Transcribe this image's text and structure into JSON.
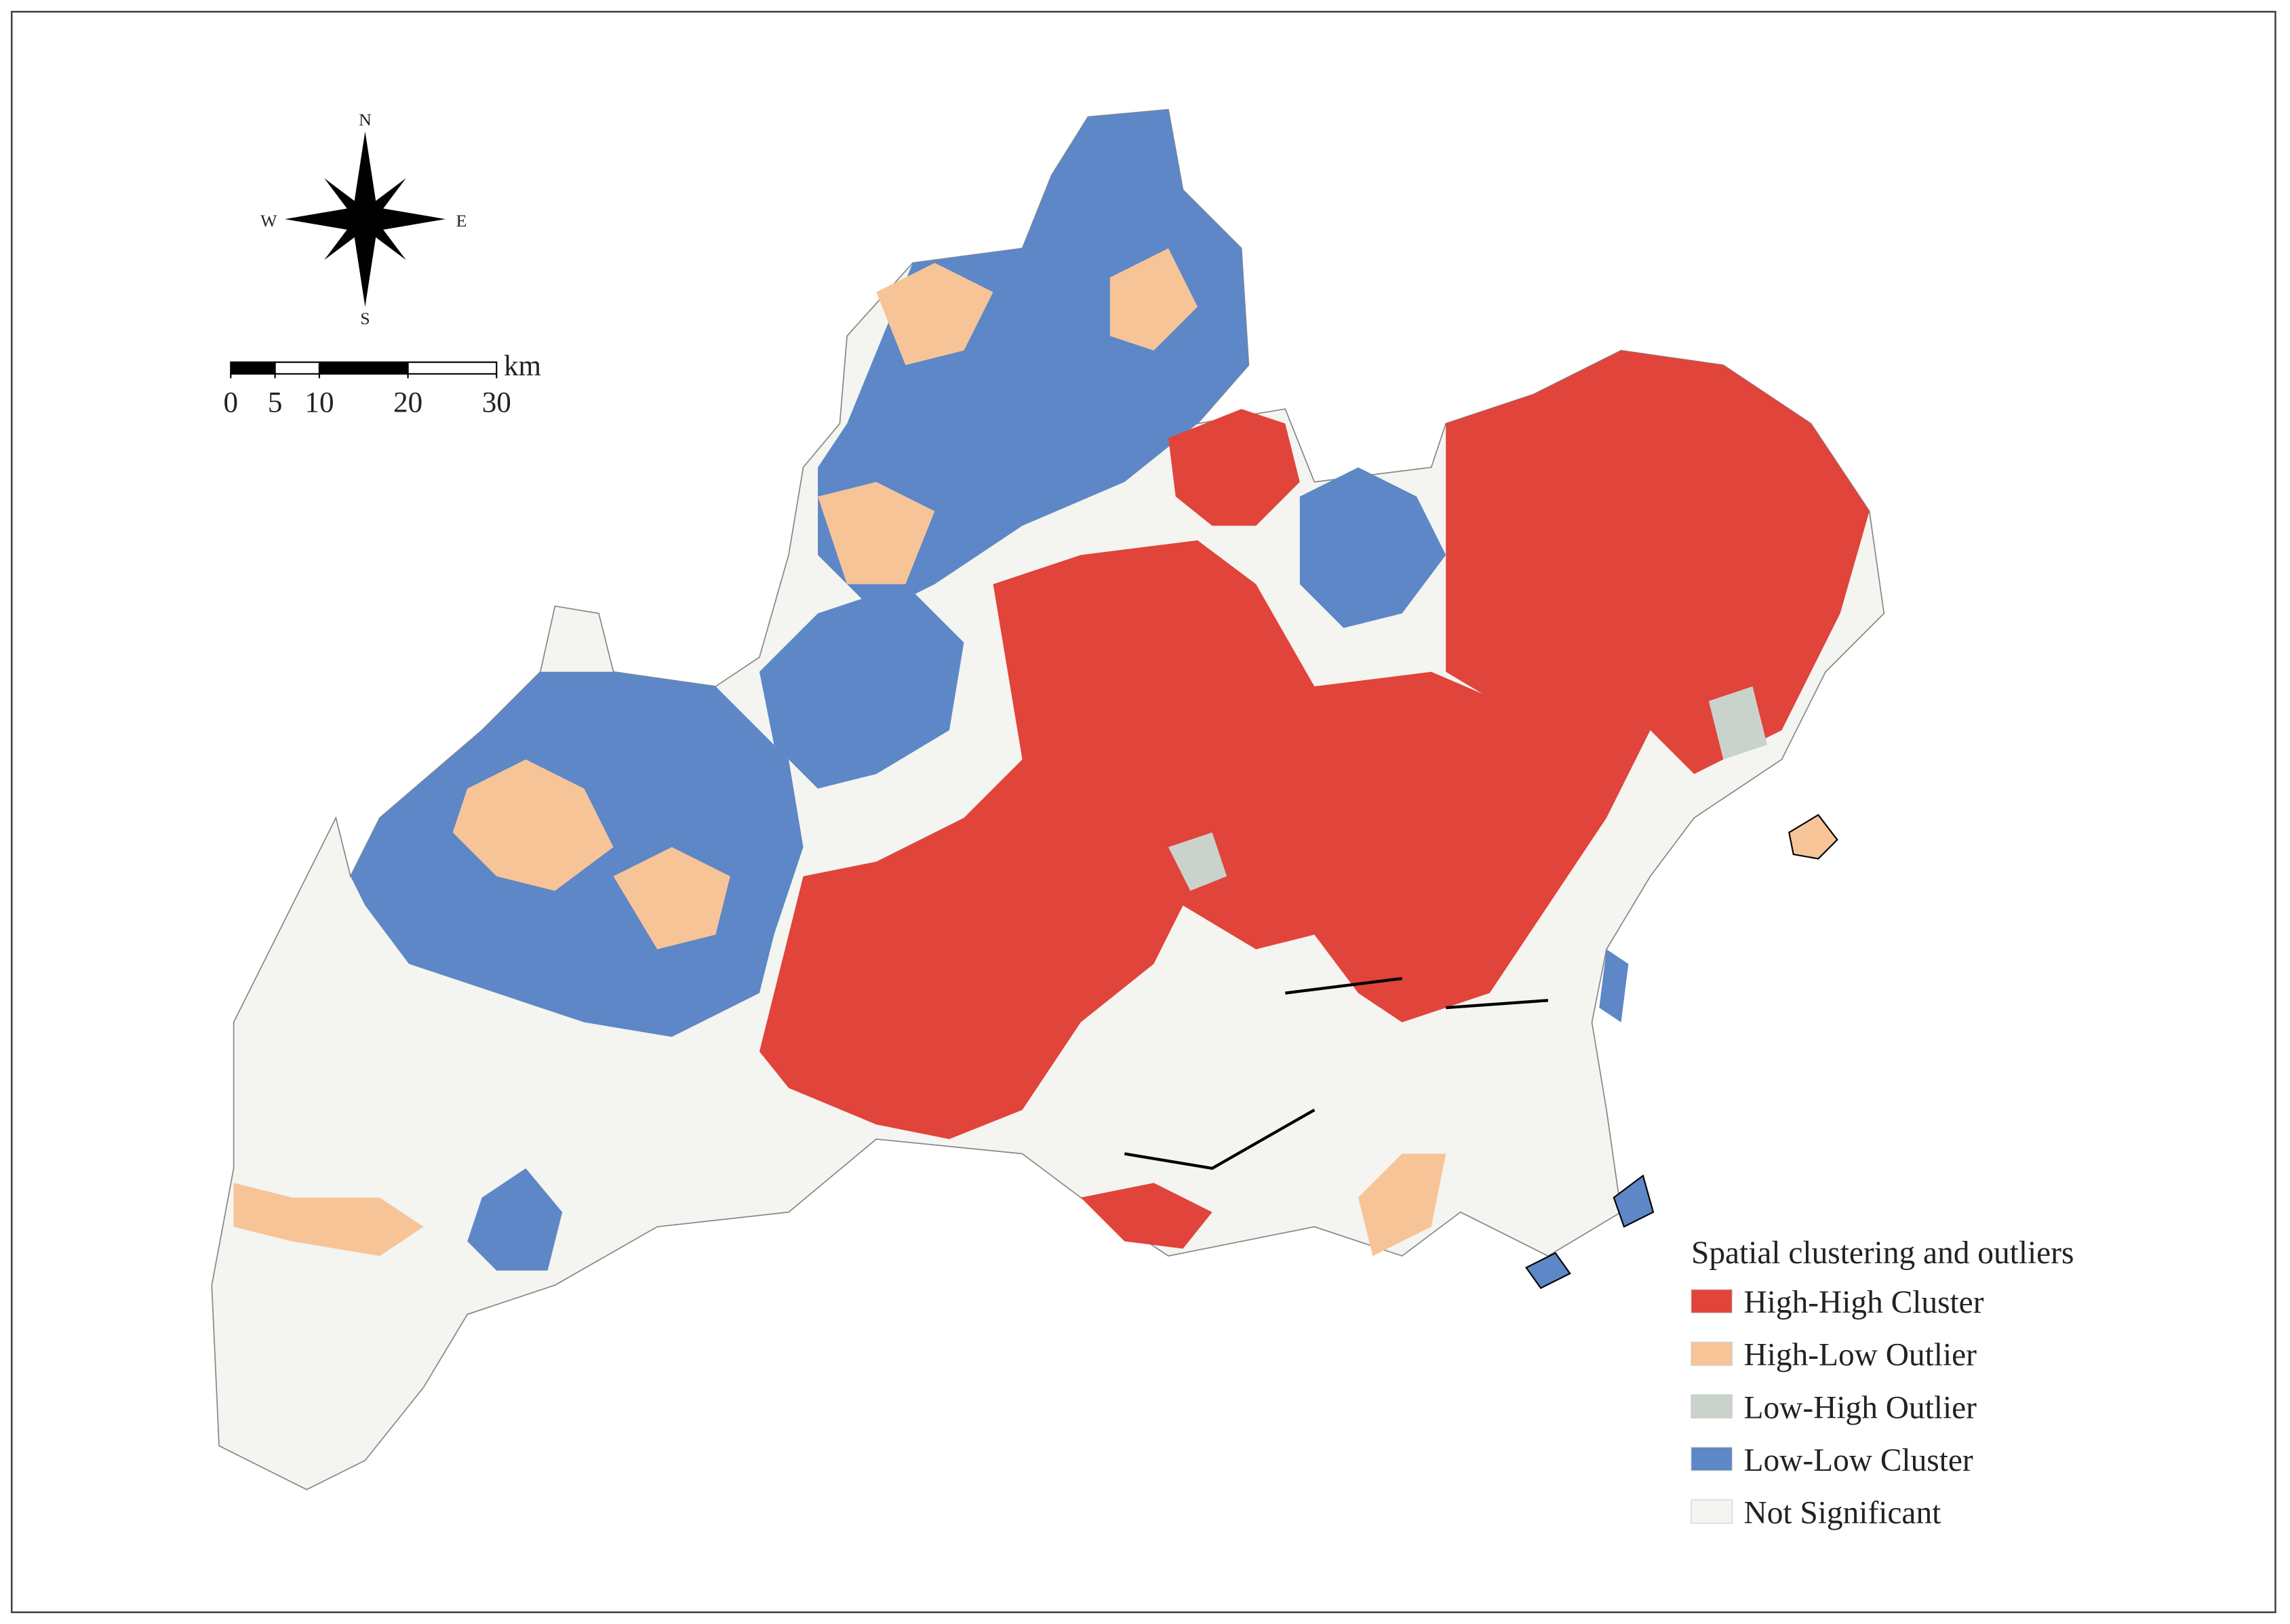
{
  "compass": {
    "north": "N",
    "south": "S",
    "east": "E",
    "west": "W"
  },
  "scale_bar": {
    "ticks": [
      0,
      5,
      10,
      20,
      30
    ],
    "unit": "km"
  },
  "legend": {
    "title": "Spatial clustering and outliers",
    "items": [
      {
        "label": "High-High Cluster",
        "color": "#e0443a"
      },
      {
        "label": "High-Low Outlier",
        "color": "#f7c498"
      },
      {
        "label": "Low-High Outlier",
        "color": "#c9d3cb"
      },
      {
        "label": "Low-Low Cluster",
        "color": "#5d87c6"
      },
      {
        "label": "Not Significant",
        "color": "#f4f4f0"
      }
    ]
  }
}
